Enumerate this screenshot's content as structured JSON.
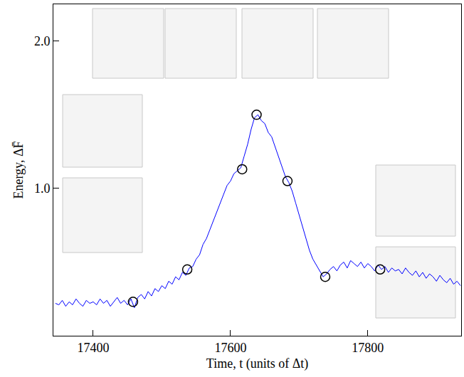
{
  "chart_data": {
    "type": "line",
    "x_label": "Time, t (units of Δt)",
    "y_label": "Energy, ΔF̄",
    "xlim": [
      17342,
      17936
    ],
    "ylim": [
      0,
      2.25
    ],
    "xticks": [
      17400,
      17600,
      17800
    ],
    "yticks": [
      {
        "value": 1,
        "label": "1.0"
      },
      {
        "value": 2,
        "label": "2.0"
      }
    ],
    "grid": false,
    "series": [
      {
        "type": "line",
        "color": "#0000ff",
        "line_style": "solid",
        "x": [
          17345,
          17350,
          17355,
          17360,
          17365,
          17370,
          17375,
          17380,
          17385,
          17390,
          17395,
          17400,
          17405,
          17410,
          17415,
          17420,
          17425,
          17430,
          17435,
          17440,
          17445,
          17450,
          17455,
          17460,
          17465,
          17470,
          17475,
          17480,
          17485,
          17490,
          17495,
          17500,
          17505,
          17510,
          17515,
          17520,
          17525,
          17530,
          17535,
          17540,
          17545,
          17550,
          17555,
          17560,
          17565,
          17570,
          17575,
          17580,
          17585,
          17590,
          17595,
          17600,
          17605,
          17610,
          17615,
          17620,
          17625,
          17630,
          17635,
          17640,
          17645,
          17650,
          17655,
          17660,
          17665,
          17670,
          17675,
          17680,
          17685,
          17690,
          17695,
          17700,
          17705,
          17710,
          17715,
          17720,
          17725,
          17730,
          17735,
          17740,
          17745,
          17750,
          17755,
          17760,
          17765,
          17770,
          17775,
          17780,
          17785,
          17790,
          17795,
          17800,
          17805,
          17810,
          17815,
          17820,
          17825,
          17830,
          17835,
          17840,
          17845,
          17850,
          17855,
          17860,
          17865,
          17870,
          17875,
          17880,
          17885,
          17890,
          17895,
          17900,
          17905,
          17910,
          17915,
          17920,
          17925,
          17930,
          17935
        ],
        "values": [
          0.22,
          0.21,
          0.24,
          0.2,
          0.23,
          0.21,
          0.25,
          0.22,
          0.2,
          0.24,
          0.22,
          0.23,
          0.21,
          0.25,
          0.22,
          0.24,
          0.2,
          0.23,
          0.26,
          0.22,
          0.24,
          0.21,
          0.25,
          0.19,
          0.26,
          0.28,
          0.25,
          0.3,
          0.27,
          0.32,
          0.3,
          0.34,
          0.32,
          0.37,
          0.35,
          0.4,
          0.38,
          0.43,
          0.41,
          0.46,
          0.47,
          0.52,
          0.55,
          0.62,
          0.66,
          0.72,
          0.78,
          0.85,
          0.9,
          0.96,
          1.02,
          1.05,
          1.1,
          1.12,
          1.14,
          1.22,
          1.3,
          1.4,
          1.48,
          1.5,
          1.46,
          1.44,
          1.38,
          1.35,
          1.28,
          1.22,
          1.15,
          1.08,
          1.04,
          0.98,
          0.9,
          0.82,
          0.74,
          0.66,
          0.58,
          0.52,
          0.48,
          0.44,
          0.4,
          0.42,
          0.45,
          0.47,
          0.44,
          0.48,
          0.5,
          0.46,
          0.51,
          0.49,
          0.47,
          0.5,
          0.46,
          0.49,
          0.47,
          0.44,
          0.48,
          0.45,
          0.47,
          0.43,
          0.46,
          0.44,
          0.45,
          0.42,
          0.46,
          0.43,
          0.41,
          0.44,
          0.4,
          0.43,
          0.39,
          0.42,
          0.4,
          0.37,
          0.41,
          0.38,
          0.36,
          0.39,
          0.35,
          0.37,
          0.34
        ]
      },
      {
        "type": "scatter",
        "color": "#000000",
        "marker": "circle-open",
        "x": [
          17458,
          17537,
          17617,
          17638,
          17683,
          17738,
          17818
        ],
        "values": [
          0.23,
          0.45,
          1.13,
          1.5,
          1.05,
          0.4,
          0.45
        ]
      }
    ]
  }
}
